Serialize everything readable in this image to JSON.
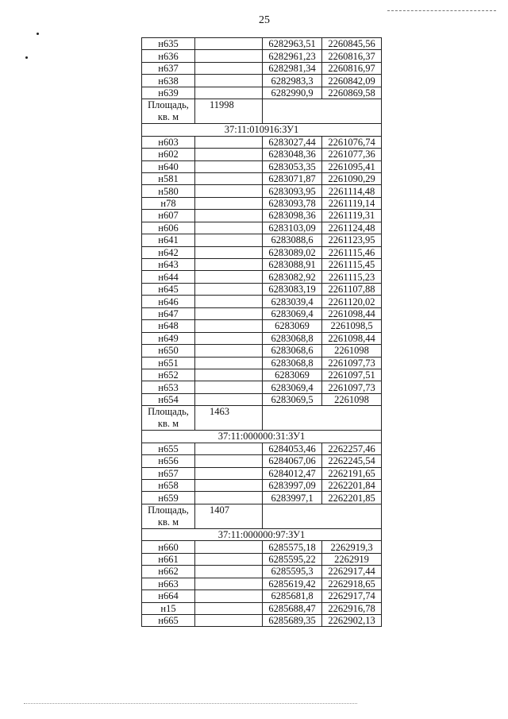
{
  "page_number": "25",
  "area_label": "Площадь, кв. м",
  "sections": [
    {
      "header": "",
      "rows": [
        [
          "н635",
          "6282963,51",
          "2260845,56"
        ],
        [
          "н636",
          "6282961,23",
          "2260816,37"
        ],
        [
          "н637",
          "6282981,34",
          "2260816,97"
        ],
        [
          "н638",
          "6282983,3",
          "2260842,09"
        ],
        [
          "н639",
          "6282990,9",
          "2260869,58"
        ]
      ],
      "area": "11998"
    },
    {
      "header": "37:11:010916:ЗУ1",
      "rows": [
        [
          "н603",
          "6283027,44",
          "2261076,74"
        ],
        [
          "н602",
          "6283048,36",
          "2261077,36"
        ],
        [
          "н640",
          "6283053,35",
          "2261095,41"
        ],
        [
          "н581",
          "6283071,87",
          "2261090,29"
        ],
        [
          "н580",
          "6283093,95",
          "2261114,48"
        ],
        [
          "н78",
          "6283093,78",
          "2261119,14"
        ],
        [
          "н607",
          "6283098,36",
          "2261119,31"
        ],
        [
          "н606",
          "6283103,09",
          "2261124,48"
        ],
        [
          "н641",
          "6283088,6",
          "2261123,95"
        ],
        [
          "н642",
          "6283089,02",
          "2261115,46"
        ],
        [
          "н643",
          "6283088,91",
          "2261115,45"
        ],
        [
          "н644",
          "6283082,92",
          "2261115,23"
        ],
        [
          "н645",
          "6283083,19",
          "2261107,88"
        ],
        [
          "н646",
          "6283039,4",
          "2261120,02"
        ],
        [
          "н647",
          "6283069,4",
          "2261098,44"
        ],
        [
          "н648",
          "6283069",
          "2261098,5"
        ],
        [
          "н649",
          "6283068,8",
          "2261098,44"
        ],
        [
          "н650",
          "6283068,6",
          "2261098"
        ],
        [
          "н651",
          "6283068,8",
          "2261097,73"
        ],
        [
          "н652",
          "6283069",
          "2261097,51"
        ],
        [
          "н653",
          "6283069,4",
          "2261097,73"
        ],
        [
          "н654",
          "6283069,5",
          "2261098"
        ]
      ],
      "area": "1463"
    },
    {
      "header": "37:11:000000:31:ЗУ1",
      "rows": [
        [
          "н655",
          "6284053,46",
          "2262257,46"
        ],
        [
          "н656",
          "6284067,06",
          "2262245,54"
        ],
        [
          "н657",
          "6284012,47",
          "2262191,65"
        ],
        [
          "н658",
          "6283997,09",
          "2262201,84"
        ],
        [
          "н659",
          "6283997,1",
          "2262201,85"
        ]
      ],
      "area": "1407"
    },
    {
      "header": "37:11:000000:97:ЗУ1",
      "rows": [
        [
          "н660",
          "6285575,18",
          "2262919,3"
        ],
        [
          "н661",
          "6285595,22",
          "2262919"
        ],
        [
          "н662",
          "6285595,3",
          "2262917,44"
        ],
        [
          "н663",
          "6285619,42",
          "2262918,65"
        ],
        [
          "н664",
          "6285681,8",
          "2262917,74"
        ],
        [
          "н15",
          "6285688,47",
          "2262916,78"
        ],
        [
          "н665",
          "6285689,35",
          "2262902,13"
        ]
      ],
      "area": null
    }
  ]
}
